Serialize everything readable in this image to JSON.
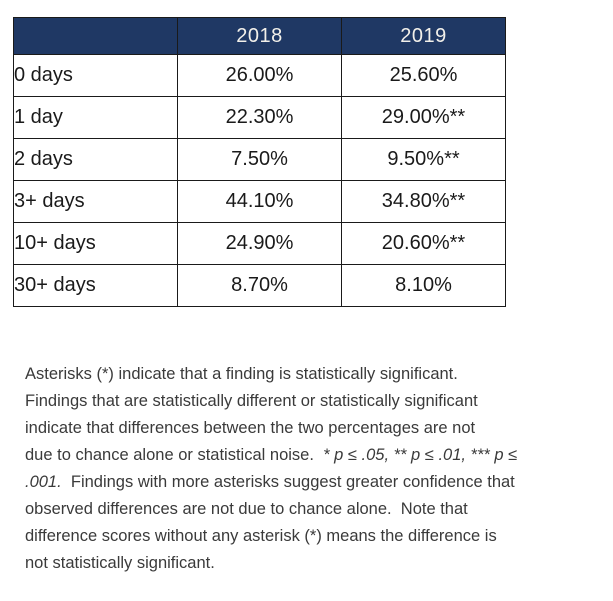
{
  "table": {
    "columns": [
      "",
      "2018",
      "2019"
    ],
    "rows": [
      {
        "label": "0 days",
        "v2018": "26.00%",
        "v2019": "25.60%"
      },
      {
        "label": "1 day",
        "v2018": "22.30%",
        "v2019": "29.00%**"
      },
      {
        "label": "2 days",
        "v2018": "7.50%",
        "v2019": "9.50%**"
      },
      {
        "label": "3+ days",
        "v2018": "44.10%",
        "v2019": "34.80%**"
      },
      {
        "label": "10+ days",
        "v2018": "24.90%",
        "v2019": "20.60%**"
      },
      {
        "label": "30+ days",
        "v2018": "8.70%",
        "v2019": "8.10%"
      }
    ],
    "colors": {
      "header_bg": "#1F3864",
      "header_text": "#F2F0EA",
      "border": "#1A1A1A"
    }
  },
  "note": {
    "lines": [
      [
        {
          "t": "Asterisks (*) indicate that a finding is statistically significant."
        }
      ],
      [
        {
          "t": "Findings that are statistically different or statistically significant"
        }
      ],
      [
        {
          "t": "indicate that differences between the two percentages are not"
        }
      ],
      [
        {
          "t": "due to chance alone or statistical noise.  "
        },
        {
          "t": "* p ≤ .05, ** p ≤ .01, *** p ≤",
          "italic": true
        }
      ],
      [
        {
          "t": ".001.",
          "italic": true
        },
        {
          "t": "  Findings with more asterisks suggest greater confidence that"
        }
      ],
      [
        {
          "t": "observed differences are not due to chance alone.  Note that"
        }
      ],
      [
        {
          "t": "difference scores without any asterisk (*) means the difference is"
        }
      ],
      [
        {
          "t": "not statistically significant."
        }
      ]
    ]
  }
}
